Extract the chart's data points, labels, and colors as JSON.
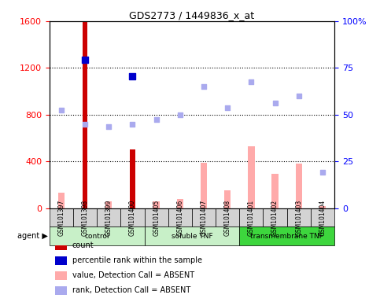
{
  "title": "GDS2773 / 1449836_x_at",
  "samples": [
    "GSM101397",
    "GSM101398",
    "GSM101399",
    "GSM101400",
    "GSM101405",
    "GSM101406",
    "GSM101407",
    "GSM101408",
    "GSM101401",
    "GSM101402",
    "GSM101403",
    "GSM101404"
  ],
  "groups": [
    {
      "label": "control",
      "start": 0,
      "end": 4,
      "color": "#90ee90"
    },
    {
      "label": "soluble TNF",
      "start": 4,
      "end": 8,
      "color": "#90ee90"
    },
    {
      "label": "transmembrane TNF",
      "start": 8,
      "end": 12,
      "color": "#2ecc40"
    }
  ],
  "count_values": [
    0,
    1600,
    0,
    500,
    0,
    0,
    0,
    0,
    0,
    0,
    0,
    0
  ],
  "count_color": "#cc0000",
  "percentile_rank_values": [
    null,
    1270,
    null,
    1130,
    null,
    null,
    null,
    null,
    null,
    null,
    null,
    null
  ],
  "percentile_rank_color": "#0000cc",
  "value_absent_values": [
    130,
    null,
    60,
    null,
    55,
    80,
    390,
    155,
    530,
    295,
    380,
    20
  ],
  "value_absent_color": "#ffaaaa",
  "rank_absent_values": [
    840,
    720,
    700,
    720,
    760,
    800,
    1040,
    860,
    1080,
    900,
    960,
    310
  ],
  "rank_absent_color": "#aaaaee",
  "ylim_left": [
    0,
    1600
  ],
  "ylim_right": [
    0,
    100
  ],
  "yticks_left": [
    0,
    400,
    800,
    1200,
    1600
  ],
  "yticks_right": [
    0,
    25,
    50,
    75,
    100
  ],
  "grid_color": "black",
  "bg_plot": "white",
  "bg_samples": "#d3d3d3",
  "legend_items": [
    {
      "color": "#cc0000",
      "label": "count"
    },
    {
      "color": "#0000cc",
      "label": "percentile rank within the sample"
    },
    {
      "color": "#ffaaaa",
      "label": "value, Detection Call = ABSENT"
    },
    {
      "color": "#aaaaee",
      "label": "rank, Detection Call = ABSENT"
    }
  ]
}
